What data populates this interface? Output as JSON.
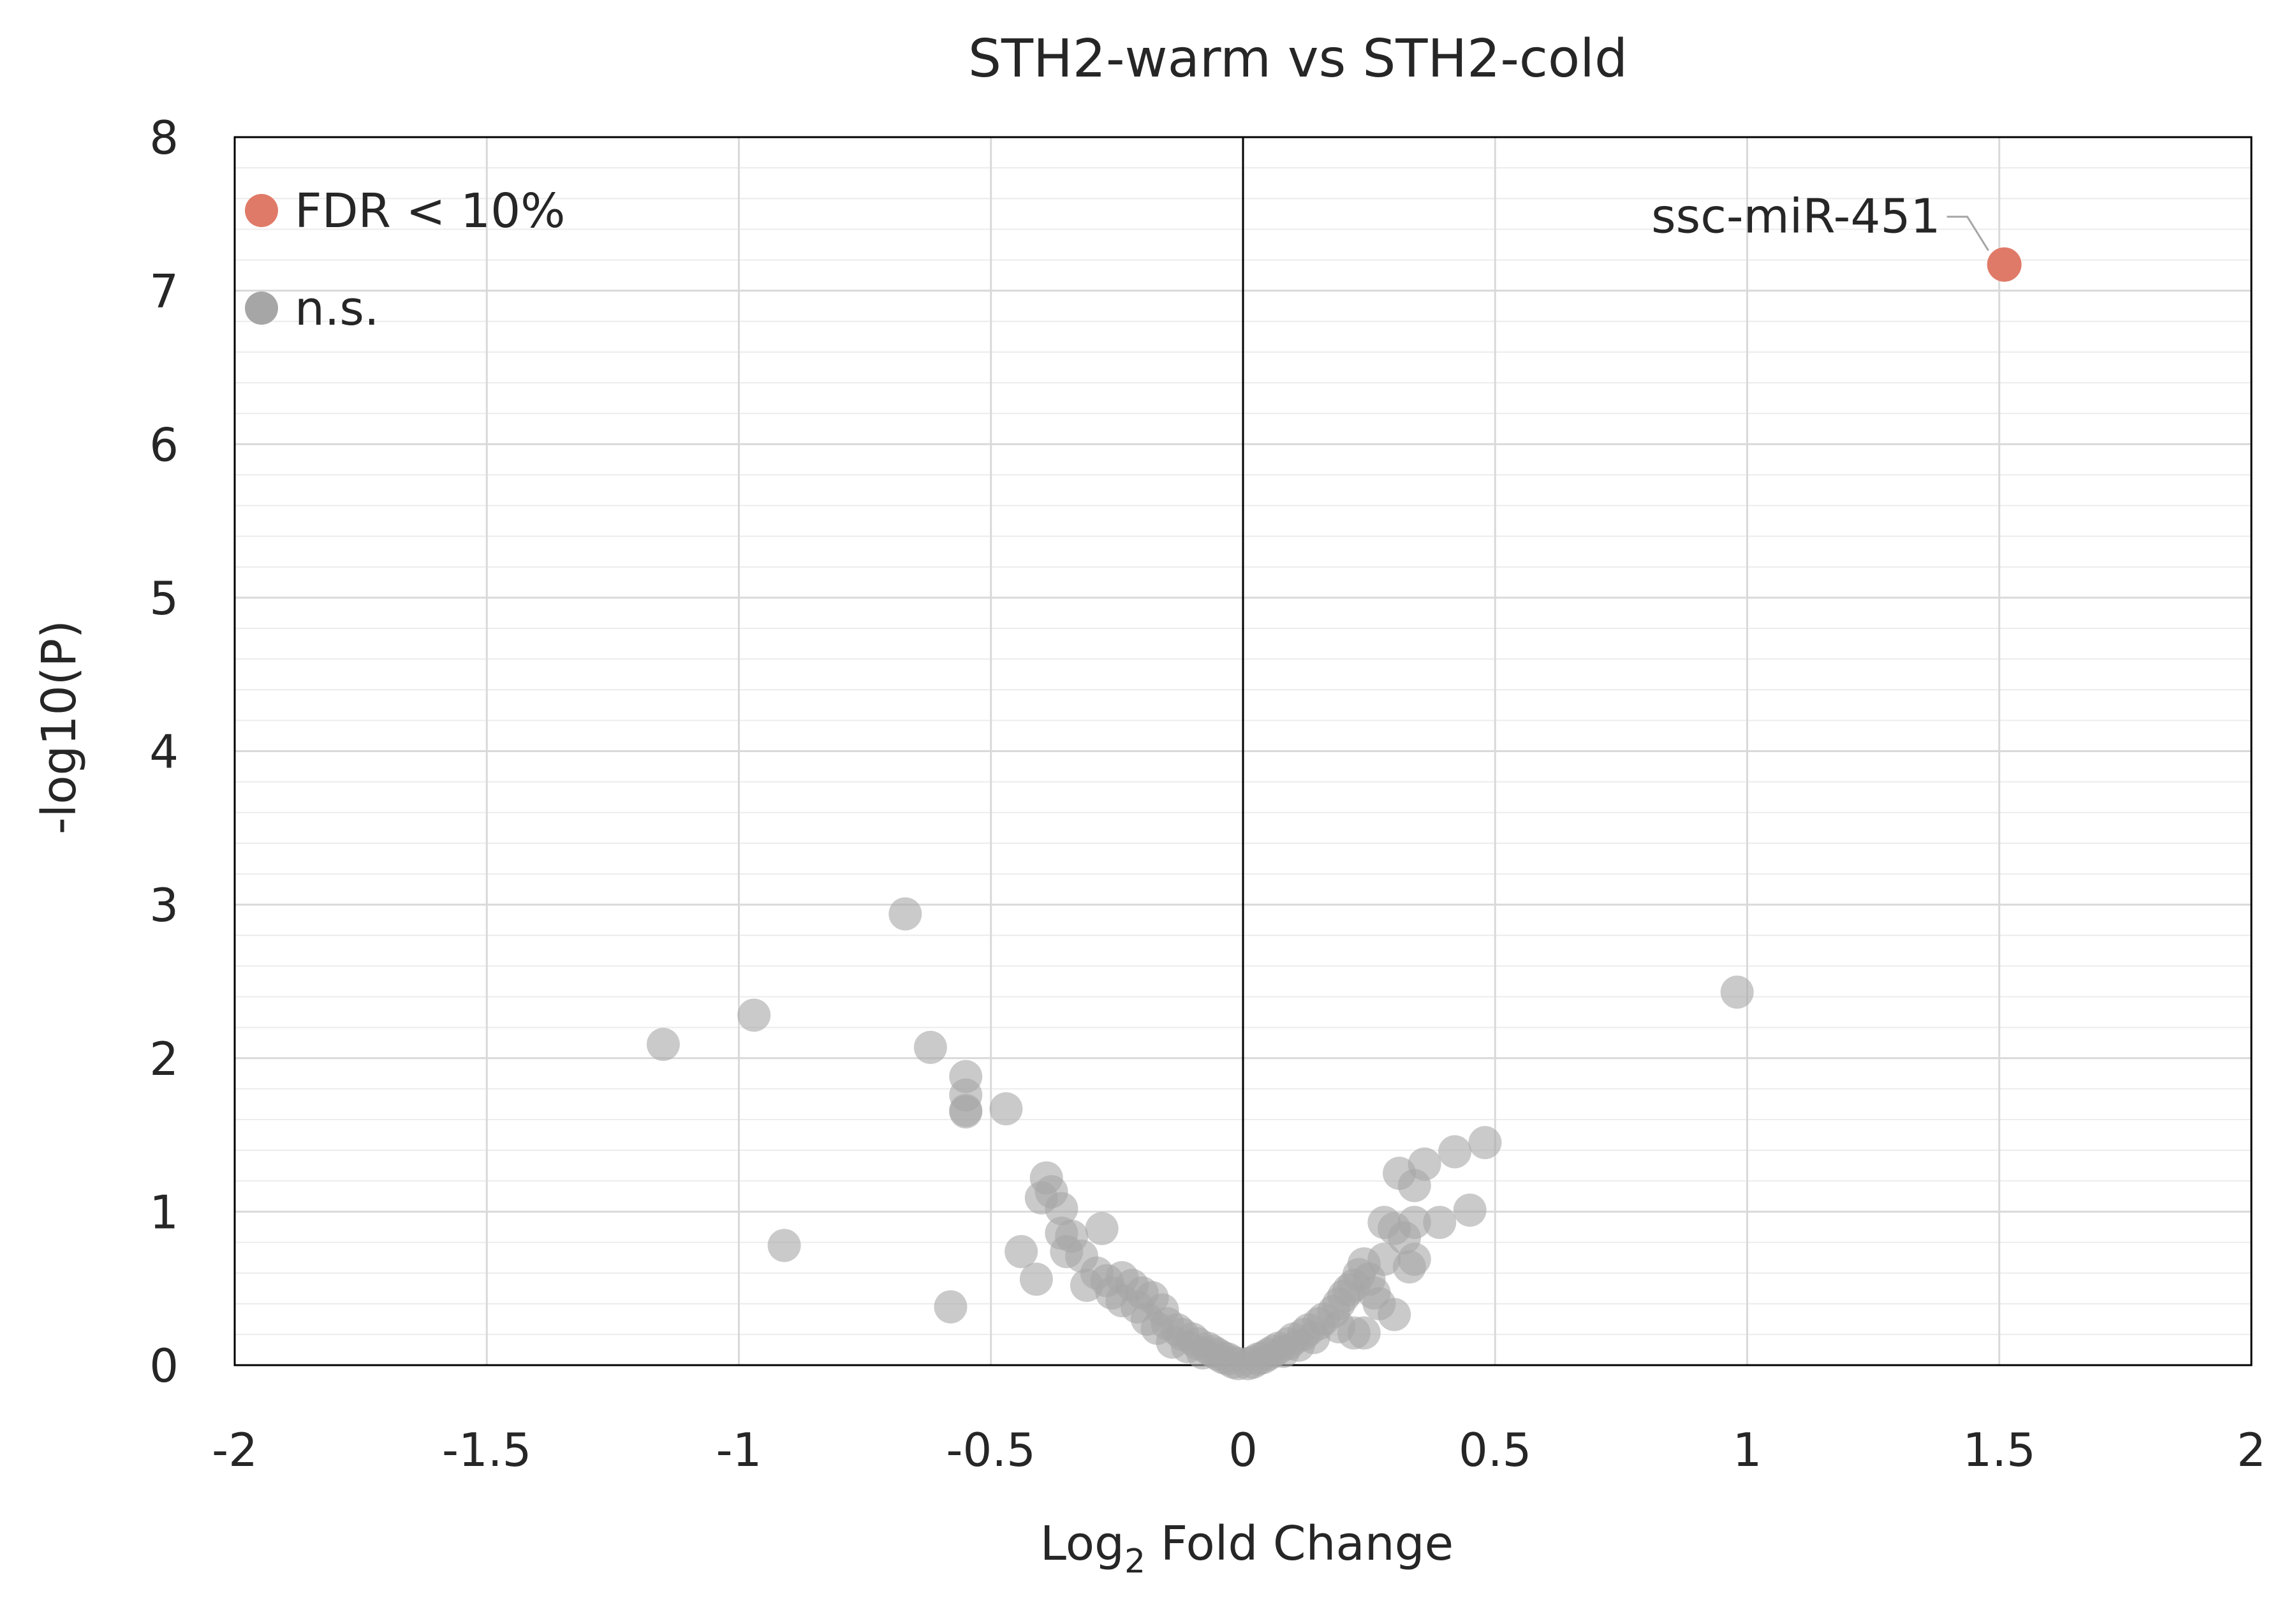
{
  "chart_data": {
    "type": "scatter",
    "title": "STH2-warm vs STH2-cold",
    "xlabel_main": "Log",
    "xlabel_sub": "2",
    "xlabel_rest": " Fold Change",
    "ylabel": "-log10(P)",
    "xlim": [
      -2,
      2
    ],
    "ylim": [
      0,
      8
    ],
    "xticks": [
      -2,
      -1.5,
      -1,
      -0.5,
      0,
      0.5,
      1,
      1.5,
      2
    ],
    "xtick_labels": [
      "-2",
      "-1.5",
      "-1",
      "-0.5",
      "0",
      "0.5",
      "1",
      "1.5",
      "2"
    ],
    "yticks": [
      0,
      1,
      2,
      3,
      4,
      5,
      6,
      7,
      8
    ],
    "ytick_labels": [
      "0",
      "1",
      "2",
      "3",
      "4",
      "5",
      "6",
      "7",
      "8"
    ],
    "grid": true,
    "legend_position": "top-left",
    "colors": {
      "significant": "#e07a68",
      "ns": "#a6a6a6",
      "grid": "#d9d9d9",
      "axis": "#000000"
    },
    "series": [
      {
        "name": "FDR < 10%",
        "points": [
          [
            1.51,
            7.17
          ]
        ]
      },
      {
        "name": "n.s.",
        "points": [
          [
            -1.15,
            2.09
          ],
          [
            -0.97,
            2.28
          ],
          [
            -0.91,
            0.78
          ],
          [
            -0.67,
            2.94
          ],
          [
            -0.62,
            2.07
          ],
          [
            -0.55,
            1.88
          ],
          [
            -0.55,
            1.76
          ],
          [
            -0.55,
            1.65
          ],
          [
            -0.55,
            1.66
          ],
          [
            -0.47,
            1.67
          ],
          [
            -0.58,
            0.38
          ],
          [
            -0.44,
            0.74
          ],
          [
            -0.41,
            0.56
          ],
          [
            -0.39,
            1.22
          ],
          [
            -0.38,
            1.13
          ],
          [
            -0.4,
            1.09
          ],
          [
            -0.36,
            1.02
          ],
          [
            -0.36,
            0.86
          ],
          [
            -0.34,
            0.84
          ],
          [
            -0.35,
            0.74
          ],
          [
            -0.32,
            0.71
          ],
          [
            -0.28,
            0.89
          ],
          [
            -0.31,
            0.52
          ],
          [
            -0.29,
            0.6
          ],
          [
            -0.27,
            0.55
          ],
          [
            -0.24,
            0.57
          ],
          [
            -0.22,
            0.52
          ],
          [
            -0.2,
            0.47
          ],
          [
            -0.18,
            0.44
          ],
          [
            -0.16,
            0.36
          ],
          [
            -0.24,
            0.42
          ],
          [
            -0.21,
            0.38
          ],
          [
            -0.19,
            0.3
          ],
          [
            -0.15,
            0.27
          ],
          [
            -0.13,
            0.23
          ],
          [
            -0.12,
            0.2
          ],
          [
            -0.1,
            0.17
          ],
          [
            -0.09,
            0.14
          ],
          [
            -0.07,
            0.11
          ],
          [
            -0.06,
            0.09
          ],
          [
            -0.05,
            0.07
          ],
          [
            -0.04,
            0.05
          ],
          [
            -0.03,
            0.04
          ],
          [
            -0.02,
            0.02
          ],
          [
            -0.01,
            0.01
          ],
          [
            -0.14,
            0.15
          ],
          [
            -0.11,
            0.12
          ],
          [
            -0.08,
            0.08
          ],
          [
            -0.17,
            0.24
          ],
          [
            -0.26,
            0.47
          ],
          [
            0.01,
            0.01
          ],
          [
            0.02,
            0.02
          ],
          [
            0.03,
            0.04
          ],
          [
            0.04,
            0.05
          ],
          [
            0.05,
            0.07
          ],
          [
            0.06,
            0.09
          ],
          [
            0.07,
            0.11
          ],
          [
            0.09,
            0.14
          ],
          [
            0.1,
            0.17
          ],
          [
            0.12,
            0.2
          ],
          [
            0.13,
            0.23
          ],
          [
            0.15,
            0.27
          ],
          [
            0.16,
            0.3
          ],
          [
            0.18,
            0.35
          ],
          [
            0.19,
            0.4
          ],
          [
            0.2,
            0.45
          ],
          [
            0.21,
            0.49
          ],
          [
            0.22,
            0.52
          ],
          [
            0.23,
            0.59
          ],
          [
            0.24,
            0.66
          ],
          [
            0.25,
            0.56
          ],
          [
            0.26,
            0.47
          ],
          [
            0.27,
            0.4
          ],
          [
            0.19,
            0.25
          ],
          [
            0.22,
            0.21
          ],
          [
            0.24,
            0.21
          ],
          [
            0.3,
            0.33
          ],
          [
            0.28,
            0.69
          ],
          [
            0.28,
            0.93
          ],
          [
            0.3,
            0.89
          ],
          [
            0.32,
            0.83
          ],
          [
            0.33,
            0.64
          ],
          [
            0.34,
            0.69
          ],
          [
            0.31,
            1.25
          ],
          [
            0.34,
            1.17
          ],
          [
            0.36,
            1.31
          ],
          [
            0.34,
            0.93
          ],
          [
            0.39,
            0.93
          ],
          [
            0.42,
            1.39
          ],
          [
            0.45,
            1.01
          ],
          [
            0.48,
            1.45
          ],
          [
            0.98,
            2.43
          ],
          [
            0.11,
            0.13
          ],
          [
            0.14,
            0.18
          ],
          [
            0.08,
            0.09
          ]
        ]
      }
    ],
    "annotations": [
      {
        "text": "ssc-miR-451",
        "x": 1.51,
        "y": 7.17
      }
    ]
  }
}
